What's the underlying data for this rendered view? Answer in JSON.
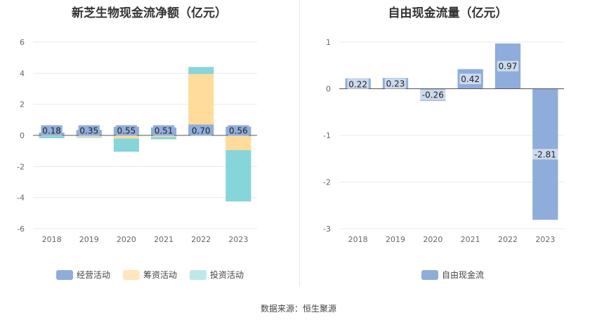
{
  "left": {
    "title": "新芝生物现金流净额（亿元）",
    "legend": [
      "经营活动",
      "筹资活动",
      "投资活动"
    ],
    "label_bg": "#91AEDC",
    "chart_data": {
      "type": "bar",
      "stacked": true,
      "categories": [
        "2018",
        "2019",
        "2020",
        "2021",
        "2022",
        "2023"
      ],
      "ylim": [
        -6,
        6
      ],
      "yticks": [
        -6,
        -4,
        -2,
        0,
        2,
        4,
        6
      ],
      "series": [
        {
          "name": "经营活动",
          "color": "#8EADDA",
          "values": [
            0.18,
            0.35,
            0.55,
            0.51,
            0.7,
            0.56
          ],
          "labels": [
            "0.18",
            "0.35",
            "0.55",
            "0.51",
            "0.70",
            "0.56"
          ]
        },
        {
          "name": "筹资活动",
          "color": "#FFDB9C",
          "values": [
            -0.05,
            -0.1,
            -0.2,
            -0.1,
            3.25,
            -0.95
          ],
          "labels": null
        },
        {
          "name": "投资活动",
          "color": "#86D5DA",
          "values": [
            -0.13,
            -0.05,
            -0.85,
            -0.15,
            0.45,
            -3.3
          ],
          "labels": null
        }
      ]
    }
  },
  "right": {
    "title": "自由现金流量（亿元）",
    "legend": [
      "自由现金流"
    ],
    "chart_data": {
      "type": "bar",
      "categories": [
        "2018",
        "2019",
        "2020",
        "2021",
        "2022",
        "2023"
      ],
      "ylim": [
        -3,
        1
      ],
      "yticks": [
        -3,
        -2,
        -1,
        0,
        1
      ],
      "series": [
        {
          "name": "自由现金流",
          "color": "#8EADDA",
          "values": [
            0.22,
            0.23,
            -0.26,
            0.42,
            0.97,
            -2.81
          ],
          "labels": [
            "0.22",
            "0.23",
            "-0.26",
            "0.42",
            "0.97",
            "-2.81"
          ]
        }
      ]
    }
  },
  "source": "数据来源：恒生聚源"
}
